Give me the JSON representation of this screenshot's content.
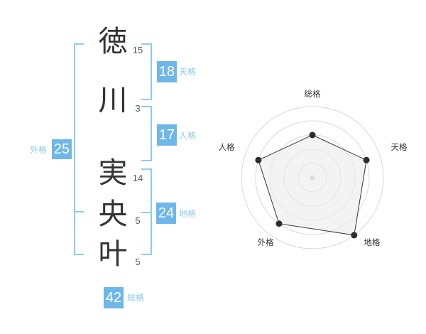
{
  "colors": {
    "box_blue": "#6eb7e9",
    "label_blue": "#8ec9f1",
    "bracket_blue": "#8dccf2",
    "ink": "#333333",
    "stroke_number_gray": "#555555",
    "ring_gray": "#d9d9d9",
    "polygon_dot_dark": "#2d2d2d",
    "center_dot_gray": "#c9c9c9",
    "polygon_fill": "#ebebeb"
  },
  "name": {
    "characters": [
      {
        "char": "徳",
        "strokes": "15"
      },
      {
        "char": "川",
        "strokes": "3"
      },
      {
        "char": "実",
        "strokes": "14"
      },
      {
        "char": "央",
        "strokes": "5"
      },
      {
        "char": "叶",
        "strokes": "5"
      }
    ]
  },
  "scores": {
    "tenkaku": {
      "value": "18",
      "label": "天格"
    },
    "jinkaku": {
      "value": "17",
      "label": "人格"
    },
    "chikaku": {
      "value": "24",
      "label": "地格"
    },
    "gaikaku": {
      "value": "25",
      "label": "外格"
    },
    "soukaku": {
      "value": "42",
      "label": "総格"
    }
  },
  "chart_data": {
    "type": "radar",
    "categories": [
      "総格",
      "天格",
      "地格",
      "外格",
      "人格"
    ],
    "values": [
      3,
      4,
      5,
      4,
      4
    ],
    "max": 5,
    "rings": 5,
    "start_angle_deg": -90,
    "direction": "clockwise",
    "grid": "concentric-circles",
    "legend_position": "none"
  }
}
